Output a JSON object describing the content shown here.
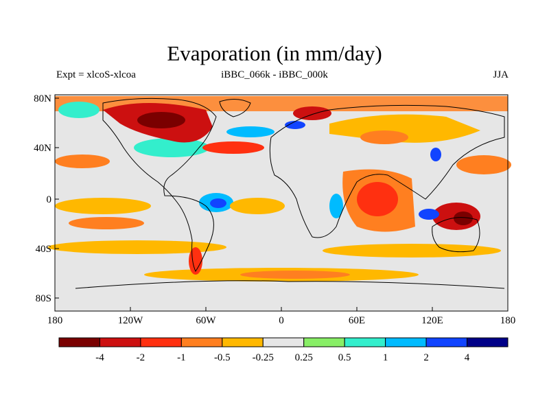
{
  "title": "Evaporation (in mm/day)",
  "left_string": "Expt = xlcoS-xlcoa",
  "center_string": "iBBC_066k - iBBC_000k",
  "right_string": "JJA",
  "y_ticks": [
    "80N",
    "40N",
    "0",
    "40S",
    "80S"
  ],
  "x_ticks": [
    "180",
    "120W",
    "60W",
    "0",
    "60E",
    "120E",
    "180"
  ],
  "colorbar": {
    "colors": [
      "#7a0000",
      "#cc1010",
      "#ff3010",
      "#ff7f20",
      "#ffb800",
      "#e6e6e6",
      "#88ee66",
      "#33eecc",
      "#00bbff",
      "#1144ff",
      "#000088"
    ],
    "labels": [
      "-4",
      "-2",
      "-1",
      "-0.5",
      "-0.25",
      "0.25",
      "0.5",
      "1",
      "2",
      "4"
    ]
  }
}
